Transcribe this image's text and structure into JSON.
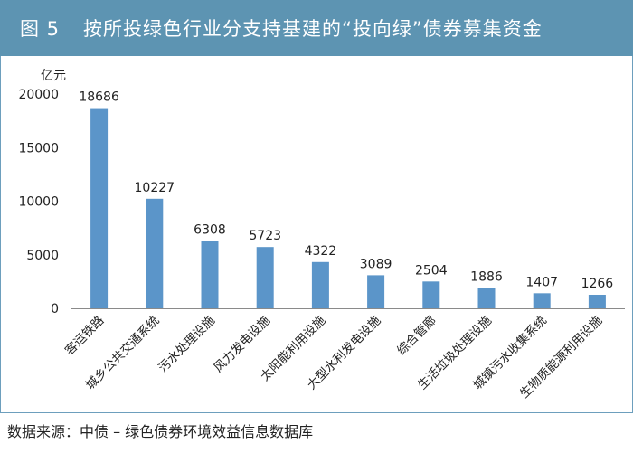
{
  "header": {
    "figure_number": "图 5",
    "title": "按所投绿色行业分支持基建的“投向绿”债券募集资金"
  },
  "footer": {
    "source": "数据来源：中债 – 绿色债券环境效益信息数据库"
  },
  "colors": {
    "title_bar": "#5d94b2",
    "bar": "#5b95c9",
    "frame": "#6d9fbd"
  },
  "chart_data": {
    "type": "bar",
    "title": "按所投绿色行业分支持基建的“投向绿”债券募集资金",
    "ylabel": "亿元",
    "xlabel": "",
    "categories": [
      "客运铁路",
      "城乡公共交通系统",
      "污水处理设施",
      "风力发电设施",
      "太阳能利用设施",
      "大型水利发电设施",
      "综合管廊",
      "生活垃圾处理设施",
      "城镇污水收集系统",
      "生物质能源利用设施"
    ],
    "values": [
      18686,
      10227,
      6308,
      5723,
      4322,
      3089,
      2504,
      1886,
      1407,
      1266
    ],
    "ylim": [
      0,
      20000
    ],
    "yticks": [
      0,
      5000,
      10000,
      15000,
      20000
    ],
    "grid": false,
    "legend": "none",
    "data_labels": true
  }
}
